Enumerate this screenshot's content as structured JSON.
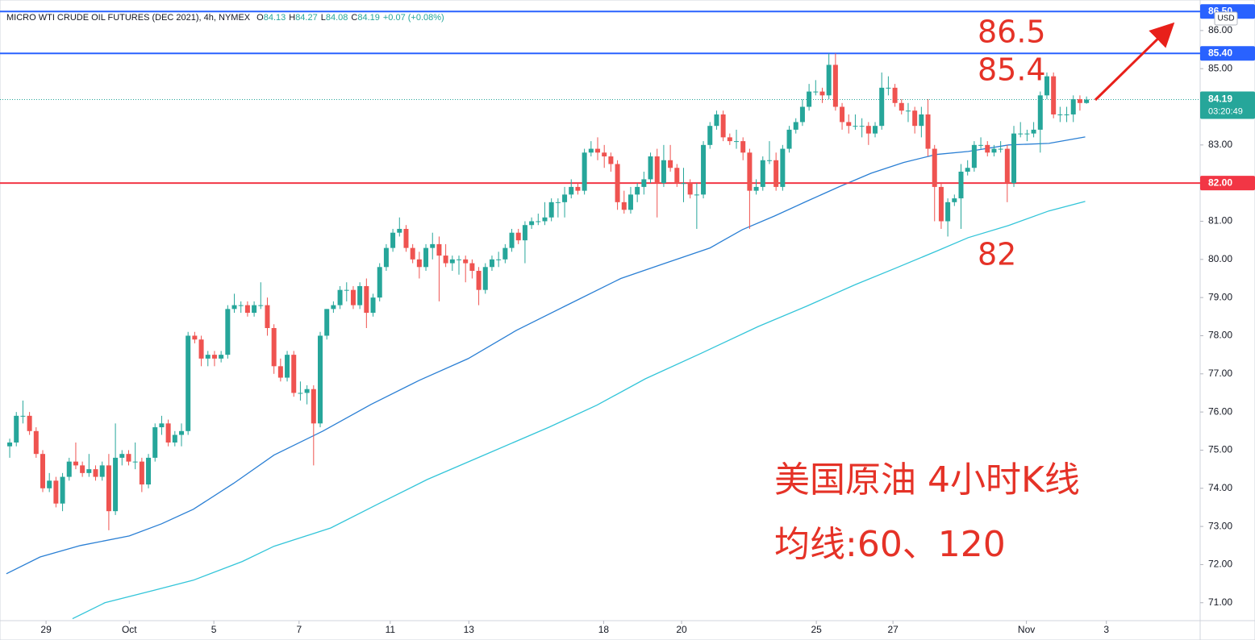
{
  "chart_data": {
    "type": "candlestick",
    "header": {
      "symbol": "MICRO WTI CRUDE OIL FUTURES (DEC 2021), 4h, NYMEX",
      "quote": [
        {
          "label": "O",
          "value": "84.13"
        },
        {
          "label": "H",
          "value": "84.27"
        },
        {
          "label": "L",
          "value": "84.08"
        },
        {
          "label": "C",
          "value": "84.19"
        }
      ],
      "change": "+0.07 (+0.08%)"
    },
    "currency": "USD",
    "up_color": "#26a69a",
    "down_color": "#ef5350",
    "ylim": [
      70.53,
      86.8
    ],
    "yticks": [
      {
        "value": 71,
        "label": "71.00"
      },
      {
        "value": 72,
        "label": "72.00"
      },
      {
        "value": 73,
        "label": "73.00"
      },
      {
        "value": 74,
        "label": "74.00"
      },
      {
        "value": 75,
        "label": "75.00"
      },
      {
        "value": 76,
        "label": "76.00"
      },
      {
        "value": 77,
        "label": "77.00"
      },
      {
        "value": 78,
        "label": "78.00"
      },
      {
        "value": 79,
        "label": "79.00"
      },
      {
        "value": 80,
        "label": "80.00"
      },
      {
        "value": 81,
        "label": "81.00"
      },
      {
        "value": 82,
        "label": "82.00"
      },
      {
        "value": 83,
        "label": "83.00"
      },
      {
        "value": 84,
        "label": "84.00"
      },
      {
        "value": 85,
        "label": "85.00"
      },
      {
        "value": 86,
        "label": "86.00"
      }
    ],
    "xlim": [
      -1.47,
      180.2
    ],
    "xticks": [
      {
        "value": 5.5,
        "label": "29"
      },
      {
        "value": 18.1,
        "label": "Oct"
      },
      {
        "value": 30.9,
        "label": "5"
      },
      {
        "value": 43.8,
        "label": "7"
      },
      {
        "value": 57.6,
        "label": "11"
      },
      {
        "value": 69.5,
        "label": "13"
      },
      {
        "value": 89.9,
        "label": "18"
      },
      {
        "value": 101.7,
        "label": "20"
      },
      {
        "value": 122.1,
        "label": "25"
      },
      {
        "value": 133.7,
        "label": "27"
      },
      {
        "value": 153.9,
        "label": "Nov"
      },
      {
        "value": 166.0,
        "label": "3"
      }
    ],
    "ohlc": [
      [
        75.1,
        75.3,
        74.8,
        75.2
      ],
      [
        75.2,
        76.0,
        75.1,
        75.9
      ],
      [
        75.9,
        76.3,
        75.7,
        75.9
      ],
      [
        75.9,
        76.0,
        75.4,
        75.5
      ],
      [
        75.5,
        75.6,
        74.8,
        74.9
      ],
      [
        74.9,
        75.0,
        73.9,
        74.0
      ],
      [
        74.0,
        74.4,
        73.9,
        74.2
      ],
      [
        74.2,
        74.3,
        73.5,
        73.6
      ],
      [
        73.6,
        74.4,
        73.4,
        74.3
      ],
      [
        74.3,
        74.8,
        74.2,
        74.7
      ],
      [
        74.7,
        75.2,
        74.5,
        74.6
      ],
      [
        74.6,
        74.7,
        74.3,
        74.4
      ],
      [
        74.4,
        74.9,
        74.3,
        74.5
      ],
      [
        74.5,
        74.6,
        74.2,
        74.3
      ],
      [
        74.3,
        74.7,
        74.2,
        74.6
      ],
      [
        74.6,
        74.9,
        72.9,
        73.4
      ],
      [
        73.4,
        75.7,
        73.3,
        74.8
      ],
      [
        74.8,
        75.0,
        74.6,
        74.9
      ],
      [
        74.9,
        75.0,
        74.6,
        74.7
      ],
      [
        74.7,
        75.2,
        74.5,
        74.7
      ],
      [
        74.7,
        74.8,
        73.9,
        74.1
      ],
      [
        74.1,
        74.9,
        74.0,
        74.8
      ],
      [
        74.8,
        75.7,
        74.7,
        75.6
      ],
      [
        75.6,
        75.9,
        75.4,
        75.7
      ],
      [
        75.7,
        75.8,
        75.1,
        75.2
      ],
      [
        75.2,
        75.5,
        75.1,
        75.4
      ],
      [
        75.4,
        75.7,
        75.1,
        75.5
      ],
      [
        75.5,
        78.1,
        75.4,
        78.0
      ],
      [
        78.0,
        78.1,
        77.8,
        77.9
      ],
      [
        77.9,
        78.0,
        77.2,
        77.4
      ],
      [
        77.4,
        77.6,
        77.2,
        77.5
      ],
      [
        77.5,
        77.6,
        77.2,
        77.4
      ],
      [
        77.4,
        77.6,
        77.3,
        77.5
      ],
      [
        77.5,
        78.8,
        77.4,
        78.7
      ],
      [
        78.7,
        79.1,
        78.6,
        78.8
      ],
      [
        78.8,
        78.9,
        78.6,
        78.8
      ],
      [
        78.8,
        78.9,
        78.5,
        78.6
      ],
      [
        78.6,
        78.9,
        78.5,
        78.8
      ],
      [
        78.8,
        79.4,
        78.7,
        78.8
      ],
      [
        78.8,
        79.0,
        78.0,
        78.2
      ],
      [
        78.2,
        78.3,
        77.0,
        77.2
      ],
      [
        77.2,
        77.4,
        76.8,
        76.9
      ],
      [
        76.9,
        77.6,
        76.8,
        77.5
      ],
      [
        77.5,
        77.6,
        76.4,
        76.5
      ],
      [
        76.5,
        76.8,
        76.3,
        76.5
      ],
      [
        76.5,
        76.7,
        76.2,
        76.6
      ],
      [
        76.6,
        76.7,
        74.6,
        75.7
      ],
      [
        75.7,
        78.1,
        75.6,
        78.0
      ],
      [
        78.0,
        78.7,
        77.9,
        78.7
      ],
      [
        78.7,
        78.9,
        78.6,
        78.8
      ],
      [
        78.8,
        79.3,
        78.7,
        79.2
      ],
      [
        79.2,
        79.4,
        78.9,
        79.2
      ],
      [
        79.2,
        79.3,
        78.7,
        78.8
      ],
      [
        78.8,
        79.4,
        78.7,
        79.3
      ],
      [
        79.3,
        79.5,
        78.2,
        78.6
      ],
      [
        78.6,
        79.1,
        78.5,
        79.0
      ],
      [
        79.0,
        79.9,
        78.9,
        79.8
      ],
      [
        79.8,
        80.4,
        79.7,
        80.3
      ],
      [
        80.3,
        80.8,
        80.2,
        80.7
      ],
      [
        80.7,
        81.1,
        80.6,
        80.8
      ],
      [
        80.8,
        80.9,
        80.2,
        80.3
      ],
      [
        80.3,
        80.4,
        79.9,
        80.0
      ],
      [
        80.0,
        80.2,
        79.5,
        79.8
      ],
      [
        79.8,
        80.4,
        79.7,
        80.3
      ],
      [
        80.3,
        80.7,
        80.0,
        80.4
      ],
      [
        80.4,
        80.6,
        78.9,
        80.1
      ],
      [
        80.1,
        80.4,
        79.8,
        79.9
      ],
      [
        79.9,
        80.1,
        79.7,
        80.0
      ],
      [
        80.0,
        80.1,
        79.6,
        80.0
      ],
      [
        80.0,
        80.1,
        79.4,
        79.9
      ],
      [
        79.9,
        80.0,
        79.5,
        79.7
      ],
      [
        79.7,
        79.8,
        78.8,
        79.2
      ],
      [
        79.2,
        79.9,
        79.1,
        79.8
      ],
      [
        79.8,
        80.1,
        79.7,
        80.0
      ],
      [
        80.0,
        80.2,
        79.8,
        80.0
      ],
      [
        80.0,
        80.4,
        79.9,
        80.3
      ],
      [
        80.3,
        80.8,
        80.2,
        80.7
      ],
      [
        80.7,
        80.8,
        80.4,
        80.5
      ],
      [
        80.5,
        81.0,
        79.9,
        80.9
      ],
      [
        80.9,
        81.1,
        80.8,
        81.0
      ],
      [
        81.0,
        81.2,
        80.9,
        81.0
      ],
      [
        81.0,
        81.5,
        80.9,
        81.1
      ],
      [
        81.1,
        81.6,
        81.0,
        81.5
      ],
      [
        81.5,
        81.6,
        81.1,
        81.5
      ],
      [
        81.5,
        81.9,
        81.1,
        81.7
      ],
      [
        81.7,
        82.1,
        81.6,
        81.9
      ],
      [
        81.9,
        82.0,
        81.7,
        81.8
      ],
      [
        81.8,
        82.9,
        81.7,
        82.8
      ],
      [
        82.8,
        83.1,
        82.7,
        82.9
      ],
      [
        82.9,
        83.2,
        82.6,
        82.8
      ],
      [
        82.8,
        83.0,
        82.4,
        82.7
      ],
      [
        82.7,
        82.8,
        82.3,
        82.5
      ],
      [
        82.5,
        82.6,
        81.3,
        81.5
      ],
      [
        81.5,
        81.8,
        81.2,
        81.3
      ],
      [
        81.3,
        81.9,
        81.2,
        81.7
      ],
      [
        81.7,
        82.0,
        81.5,
        81.9
      ],
      [
        81.9,
        82.3,
        81.7,
        82.1
      ],
      [
        82.1,
        82.8,
        82.0,
        82.7
      ],
      [
        82.7,
        82.9,
        81.1,
        82.0
      ],
      [
        82.0,
        83.0,
        81.9,
        82.6
      ],
      [
        82.6,
        83.0,
        82.3,
        82.4
      ],
      [
        82.4,
        82.5,
        81.9,
        82.0
      ],
      [
        82.0,
        82.4,
        81.5,
        82.0
      ],
      [
        82.0,
        82.1,
        81.6,
        81.7
      ],
      [
        81.7,
        82.0,
        80.8,
        81.7
      ],
      [
        81.7,
        83.1,
        81.6,
        83.0
      ],
      [
        83.0,
        83.6,
        82.9,
        83.5
      ],
      [
        83.5,
        83.9,
        83.4,
        83.8
      ],
      [
        83.8,
        83.9,
        83.1,
        83.2
      ],
      [
        83.2,
        83.3,
        83.0,
        83.1
      ],
      [
        83.1,
        83.4,
        82.9,
        83.1
      ],
      [
        83.1,
        83.2,
        82.6,
        82.8
      ],
      [
        82.8,
        82.9,
        80.8,
        81.8
      ],
      [
        81.8,
        82.1,
        81.7,
        81.9
      ],
      [
        81.9,
        82.7,
        81.8,
        82.6
      ],
      [
        82.6,
        83.1,
        82.5,
        82.6
      ],
      [
        82.6,
        82.8,
        81.8,
        81.9
      ],
      [
        81.9,
        83.0,
        81.8,
        82.9
      ],
      [
        82.9,
        83.5,
        82.8,
        83.4
      ],
      [
        83.4,
        83.7,
        83.3,
        83.6
      ],
      [
        83.6,
        84.2,
        83.5,
        84.0
      ],
      [
        84.0,
        84.6,
        83.9,
        84.4
      ],
      [
        84.4,
        84.7,
        84.3,
        84.4
      ],
      [
        84.4,
        84.5,
        84.1,
        84.3
      ],
      [
        84.3,
        85.4,
        84.2,
        85.1
      ],
      [
        85.1,
        85.4,
        83.9,
        84.0
      ],
      [
        84.0,
        84.1,
        83.4,
        83.6
      ],
      [
        83.6,
        83.8,
        83.3,
        83.5
      ],
      [
        83.5,
        83.8,
        83.4,
        83.5
      ],
      [
        83.5,
        83.7,
        83.2,
        83.5
      ],
      [
        83.5,
        83.6,
        83.0,
        83.3
      ],
      [
        83.3,
        83.6,
        83.2,
        83.5
      ],
      [
        83.5,
        84.9,
        83.4,
        84.5
      ],
      [
        84.5,
        84.8,
        84.3,
        84.5
      ],
      [
        84.5,
        84.6,
        84.0,
        84.1
      ],
      [
        84.1,
        84.2,
        83.8,
        83.9
      ],
      [
        83.9,
        84.1,
        83.6,
        83.9
      ],
      [
        83.9,
        84.0,
        83.3,
        83.5
      ],
      [
        83.5,
        84.0,
        83.2,
        83.8
      ],
      [
        83.8,
        84.2,
        82.7,
        82.9
      ],
      [
        82.9,
        83.0,
        81.0,
        81.9
      ],
      [
        81.9,
        82.0,
        80.8,
        81.0
      ],
      [
        81.0,
        81.6,
        80.6,
        81.5
      ],
      [
        81.5,
        81.7,
        81.4,
        81.6
      ],
      [
        81.6,
        82.5,
        80.8,
        82.3
      ],
      [
        82.3,
        82.6,
        82.2,
        82.4
      ],
      [
        82.4,
        83.1,
        82.3,
        83.0
      ],
      [
        83.0,
        83.2,
        82.9,
        83.0
      ],
      [
        83.0,
        83.1,
        82.7,
        82.8
      ],
      [
        82.8,
        83.0,
        82.7,
        82.9
      ],
      [
        82.9,
        83.1,
        82.8,
        82.9
      ],
      [
        82.9,
        83.0,
        81.5,
        82.0
      ],
      [
        82.0,
        83.5,
        81.9,
        83.3
      ],
      [
        83.3,
        83.6,
        83.2,
        83.3
      ],
      [
        83.3,
        83.4,
        83.1,
        83.3
      ],
      [
        83.3,
        83.6,
        83.2,
        83.4
      ],
      [
        83.4,
        84.4,
        82.8,
        84.3
      ],
      [
        84.3,
        84.9,
        84.2,
        84.8
      ],
      [
        84.8,
        84.9,
        83.7,
        83.8
      ],
      [
        83.8,
        84.0,
        83.6,
        83.8
      ],
      [
        83.8,
        84.0,
        83.6,
        83.8
      ],
      [
        83.8,
        84.3,
        83.6,
        84.2
      ],
      [
        84.2,
        84.3,
        83.9,
        84.1
      ],
      [
        84.1,
        84.27,
        84.08,
        84.19
      ]
    ],
    "series": [
      {
        "color": "#2a7fd4",
        "x": [
          -0.5,
          4.6,
          10.7,
          18.1,
          23,
          27.8,
          33.9,
          40,
          47.4,
          54.7,
          62,
          69.4,
          76.7,
          84,
          92.5,
          98.7,
          106,
          110.9,
          115.8,
          120.6,
          125.5,
          130.4,
          135.3,
          140.2,
          145.1,
          151.2,
          157.3,
          162.8
        ],
        "values": [
          71.76,
          72.2,
          72.5,
          72.75,
          73.07,
          73.45,
          74.13,
          74.87,
          75.5,
          76.2,
          76.83,
          77.4,
          78.14,
          78.77,
          79.5,
          79.87,
          80.3,
          80.78,
          81.14,
          81.52,
          81.9,
          82.26,
          82.54,
          82.75,
          82.83,
          83.0,
          83.04,
          83.21
        ]
      },
      {
        "color": "#33c5d9",
        "x": [
          9.5,
          14.4,
          21.7,
          27.8,
          35.2,
          40,
          48.6,
          55.9,
          63.2,
          71.8,
          81.6,
          88.9,
          96.2,
          104.8,
          113.3,
          120.6,
          128,
          134.1,
          140.2,
          145.1,
          151.2,
          157.3,
          162.8
        ],
        "values": [
          70.58,
          71.0,
          71.32,
          71.59,
          72.08,
          72.48,
          72.96,
          73.6,
          74.23,
          74.87,
          75.6,
          76.18,
          76.87,
          77.55,
          78.24,
          78.77,
          79.34,
          79.77,
          80.21,
          80.57,
          80.89,
          81.27,
          81.52
        ]
      }
    ],
    "levels": [
      {
        "value": 86.5,
        "label": "86.50",
        "color": "#2962ff"
      },
      {
        "value": 85.4,
        "label": "85.40",
        "color": "#2962ff"
      },
      {
        "value": 82.0,
        "label": "82.00",
        "color": "#f23645"
      }
    ],
    "last_price": {
      "value": 84.19,
      "label": "84.19",
      "countdown": "03:20:49",
      "color": "#26a69a"
    },
    "annotations": [
      "86.5",
      "85.4",
      "82",
      "美国原油 4小时K线",
      "均线:60、120"
    ]
  }
}
